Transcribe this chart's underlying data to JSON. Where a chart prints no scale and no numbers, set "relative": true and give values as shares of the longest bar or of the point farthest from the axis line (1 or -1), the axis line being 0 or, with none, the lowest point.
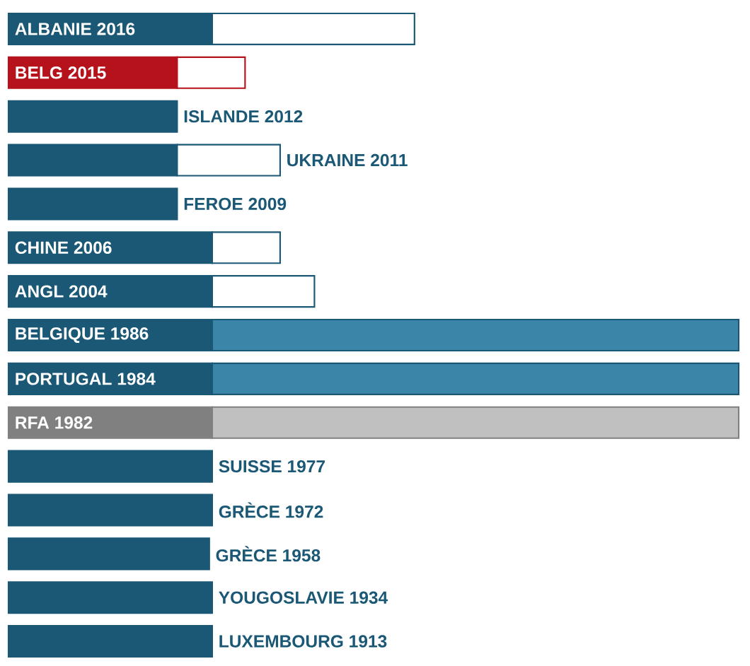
{
  "chart_data": {
    "type": "bar",
    "orientation": "horizontal",
    "stacked": true,
    "relative": true,
    "categories": [
      "ALBANIE 2016",
      "BELG 2015",
      "ISLANDE 2012",
      "UKRAINE 2011",
      "FEROE 2009",
      "CHINE 2006",
      "ANGL 2004",
      "BELGIQUE 1986",
      "PORTUGAL 1984",
      "RFA 1982",
      "SUISSE 1977",
      "GRÈCE 1972",
      "GRÈCE 1958",
      "YOUGOSLAVIE 1934",
      "LUXEMBOURG 1913"
    ],
    "series": [
      {
        "colors": [
          "#1a5876",
          "#b5121b",
          "#1a5876",
          "#1a5876",
          "#1a5876",
          "#1a5876",
          "#1a5876",
          "#1a5876",
          "#1a5876",
          "#808080",
          "#1a5876",
          "#1a5876",
          "#1a5876",
          "#1a5876",
          "#1a5876"
        ],
        "values": [
          0.279,
          0.231,
          0.231,
          0.231,
          0.231,
          0.279,
          0.279,
          0.279,
          0.279,
          0.279,
          0.279,
          0.279,
          0.275,
          0.279,
          0.279
        ]
      },
      {
        "colors": [
          "#ffffff",
          "#ffffff",
          null,
          "#ffffff",
          null,
          "#ffffff",
          "#ffffff",
          "#3b86a8",
          "#3b86a8",
          "#c0c0c0",
          null,
          null,
          null,
          null,
          null
        ],
        "values": [
          0.277,
          0.093,
          null,
          0.141,
          null,
          0.093,
          0.14,
          0.721,
          0.721,
          0.721,
          null,
          null,
          null,
          null,
          null
        ]
      }
    ]
  }
}
